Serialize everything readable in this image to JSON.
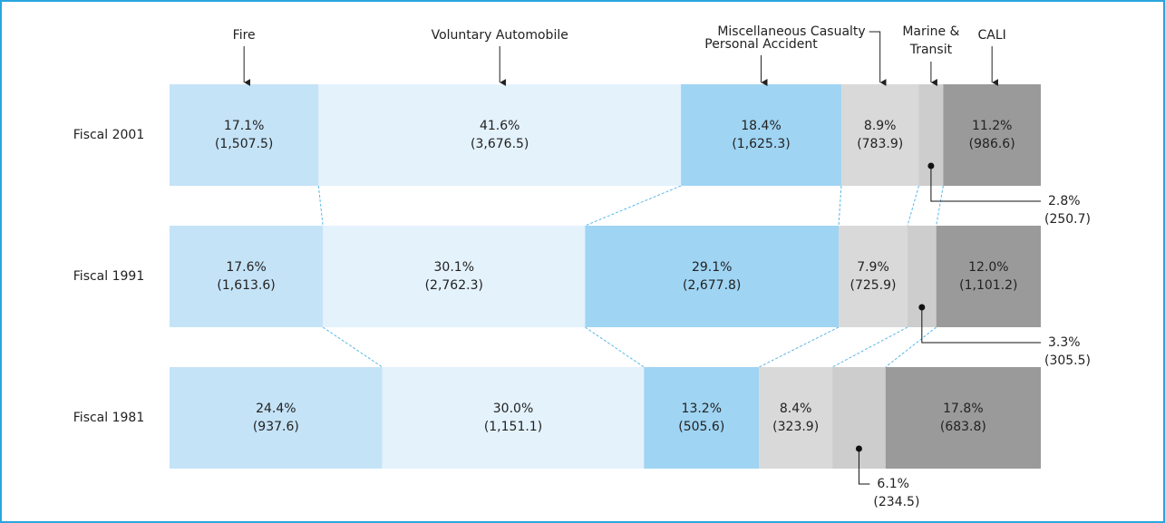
{
  "chart_data": {
    "type": "stacked-bar-100",
    "categories": [
      "Fiscal 2001",
      "Fiscal 1991",
      "Fiscal 1981"
    ],
    "series": [
      {
        "name": "Fire",
        "color": "#c5e3f7",
        "values": [
          17.1,
          17.6,
          24.4
        ],
        "value_labels": [
          "17.1%",
          "17.6%",
          "24.4%"
        ],
        "amounts": [
          1507.5,
          1613.6,
          937.6
        ],
        "amount_labels": [
          "(1,507.5)",
          "(1,613.6)",
          "(937.6)"
        ]
      },
      {
        "name": "Voluntary Automobile",
        "color": "#e4f2fc",
        "values": [
          41.6,
          30.1,
          30.0
        ],
        "value_labels": [
          "41.6%",
          "30.1%",
          "30.0%"
        ],
        "amounts": [
          3676.5,
          2762.3,
          1151.1
        ],
        "amount_labels": [
          "(3,676.5)",
          "(2,762.3)",
          "(1,151.1)"
        ]
      },
      {
        "name": "Personal Accident",
        "color": "#9fd4f3",
        "values": [
          18.4,
          29.1,
          13.2
        ],
        "value_labels": [
          "18.4%",
          "29.1%",
          "13.2%"
        ],
        "amounts": [
          1625.3,
          2677.8,
          505.6
        ],
        "amount_labels": [
          "(1,625.3)",
          "(2,677.8)",
          "(505.6)"
        ]
      },
      {
        "name": "Miscellaneous Casualty",
        "color": "#d9d9d9",
        "values": [
          8.9,
          7.9,
          8.4
        ],
        "value_labels": [
          "8.9%",
          "7.9%",
          "8.4%"
        ],
        "amounts": [
          783.9,
          725.9,
          323.9
        ],
        "amount_labels": [
          "(783.9)",
          "(725.9)",
          "(323.9)"
        ]
      },
      {
        "name": "Marine & Transit",
        "color": "#cdcdcd",
        "values": [
          2.8,
          3.3,
          6.1
        ],
        "value_labels": [
          "2.8%",
          "3.3%",
          "6.1%"
        ],
        "amounts": [
          250.7,
          305.5,
          234.5
        ],
        "amount_labels": [
          "(250.7)",
          "(305.5)",
          "(234.5)"
        ]
      },
      {
        "name": "CALI",
        "color": "#9a9a9a",
        "values": [
          11.2,
          12.0,
          17.8
        ],
        "value_labels": [
          "11.2%",
          "12.0%",
          "17.8%"
        ],
        "amounts": [
          986.6,
          1101.2,
          683.8
        ],
        "amount_labels": [
          "(986.6)",
          "(1,101.2)",
          "(683.8)"
        ]
      }
    ]
  }
}
